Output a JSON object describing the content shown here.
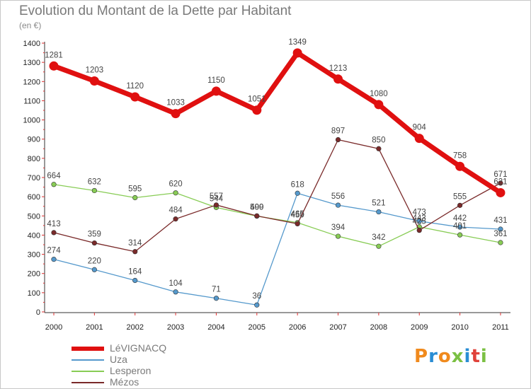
{
  "header": {
    "title": "Evolution du Montant de la Dette par Habitant",
    "subtitle": "(en €)"
  },
  "logo": {
    "text": "Proxiti",
    "colors": [
      "#f08a1d",
      "#2a8dd4",
      "#f08a1d",
      "#7bc043",
      "#2a8dd4",
      "#e0423a",
      "#7bc043"
    ]
  },
  "chart_data": {
    "type": "line",
    "title": "Evolution du Montant de la Dette par Habitant",
    "subtitle": "(en €)",
    "xlabel": "",
    "ylabel": "",
    "x": [
      "2000",
      "2001",
      "2002",
      "2003",
      "2004",
      "2005",
      "2006",
      "2007",
      "2008",
      "2009",
      "2010",
      "2011"
    ],
    "ylim": [
      0,
      1400
    ],
    "yticks": [
      0,
      100,
      200,
      300,
      400,
      500,
      600,
      700,
      800,
      900,
      1000,
      1100,
      1200,
      1300,
      1400
    ],
    "grid": false,
    "legend_position": "bottom-left",
    "series": [
      {
        "name": "LéVIGNACQ",
        "color": "#e01010",
        "values": [
          1281,
          1203,
          1120,
          1033,
          1150,
          1051,
          1349,
          1213,
          1080,
          904,
          758,
          621
        ]
      },
      {
        "name": "Uza",
        "color": "#5599cc",
        "values": [
          274,
          220,
          164,
          104,
          71,
          36,
          618,
          556,
          521,
          473,
          442,
          431
        ]
      },
      {
        "name": "Lesperon",
        "color": "#88cc55",
        "values": [
          664,
          632,
          595,
          620,
          544,
          499,
          465,
          394,
          342,
          443,
          401,
          361
        ]
      },
      {
        "name": "Mézos",
        "color": "#7a2a2a",
        "values": [
          413,
          359,
          314,
          484,
          557,
          500,
          459,
          897,
          850,
          425,
          555,
          671
        ]
      }
    ]
  }
}
